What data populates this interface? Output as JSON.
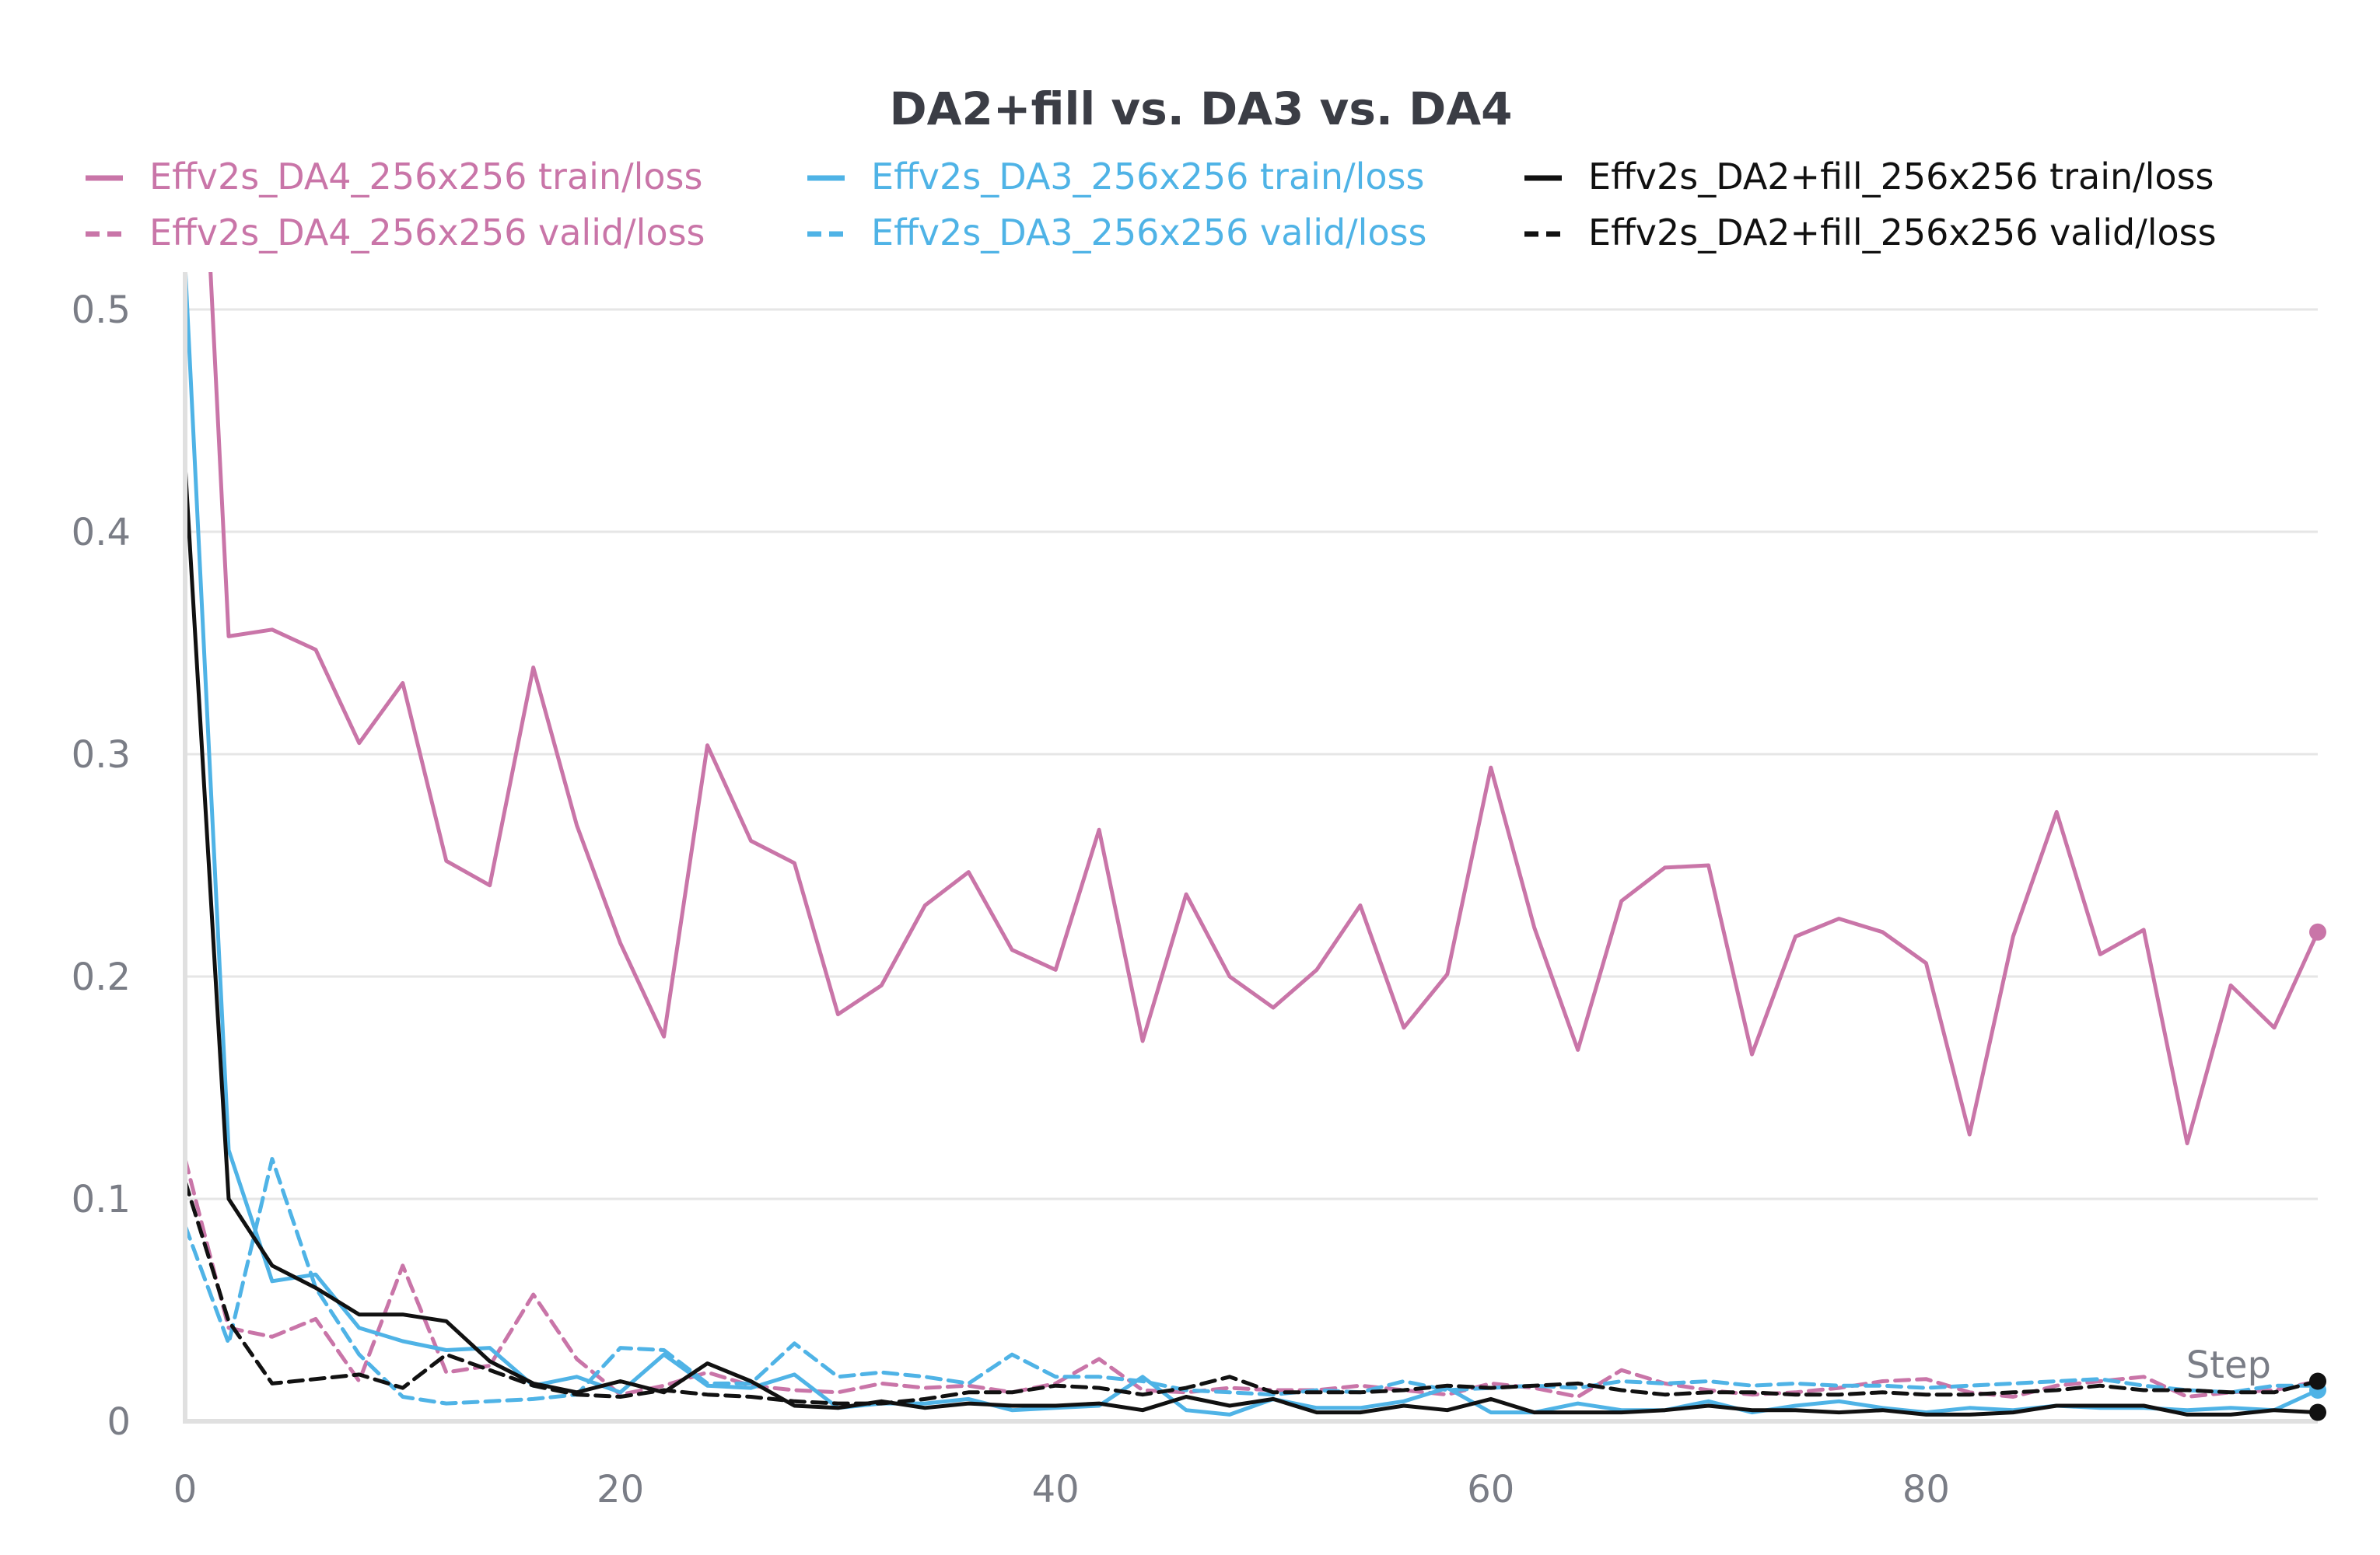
{
  "chart_data": {
    "type": "line",
    "title": "DA2+fill vs. DA3 vs. DA4",
    "xlabel": "Step",
    "ylabel": "",
    "xlim": [
      0,
      98
    ],
    "ylim": [
      0,
      0.5
    ],
    "xticks": [
      0,
      20,
      40,
      60,
      80
    ],
    "yticks": [
      0,
      0.1,
      0.2,
      0.3,
      0.4,
      0.5
    ],
    "ytick_labels": [
      "0",
      "0.1",
      "0.2",
      "0.3",
      "0.4",
      "0.5"
    ],
    "xtick_labels": [
      "0",
      "20",
      "40",
      "60",
      "80"
    ],
    "grid": true,
    "legend_position": "top",
    "series": [
      {
        "name": "Effv2s_DA4_256x256 train/loss",
        "color": "#c975a8",
        "style": "solid",
        "x": [
          1,
          2,
          4,
          6,
          8,
          10,
          12,
          14,
          16,
          18,
          20,
          22,
          24,
          26,
          28,
          30,
          32,
          34,
          36,
          38,
          40,
          42,
          44,
          46,
          48,
          50,
          52,
          54,
          56,
          58,
          60,
          62,
          64,
          66,
          68,
          70,
          72,
          74,
          76,
          78,
          80,
          82,
          84,
          86,
          88,
          90,
          92,
          94,
          96,
          98
        ],
        "y": [
          0.55,
          0.353,
          0.356,
          0.347,
          0.305,
          0.332,
          0.252,
          0.241,
          0.339,
          0.268,
          0.215,
          0.173,
          0.304,
          0.261,
          0.251,
          0.183,
          0.196,
          0.232,
          0.247,
          0.212,
          0.203,
          0.266,
          0.171,
          0.237,
          0.2,
          0.186,
          0.203,
          0.232,
          0.177,
          0.201,
          0.294,
          0.222,
          0.167,
          0.234,
          0.249,
          0.25,
          0.165,
          0.218,
          0.226,
          0.22,
          0.206,
          0.129,
          0.218,
          0.274,
          0.21,
          0.221,
          0.125,
          0.196,
          0.177,
          0.22
        ]
      },
      {
        "name": "Effv2s_DA4_256x256 valid/loss",
        "color": "#c975a8",
        "style": "dashed",
        "x": [
          0,
          2,
          4,
          6,
          8,
          10,
          12,
          14,
          16,
          18,
          20,
          22,
          24,
          26,
          28,
          30,
          32,
          34,
          36,
          38,
          40,
          42,
          44,
          46,
          48,
          50,
          52,
          54,
          56,
          58,
          60,
          62,
          64,
          66,
          68,
          70,
          72,
          74,
          76,
          78,
          80,
          82,
          84,
          86,
          88,
          90,
          92,
          94,
          96,
          98
        ],
        "y": [
          0.118,
          0.042,
          0.038,
          0.046,
          0.018,
          0.07,
          0.022,
          0.025,
          0.057,
          0.028,
          0.012,
          0.016,
          0.022,
          0.016,
          0.014,
          0.013,
          0.017,
          0.015,
          0.016,
          0.013,
          0.017,
          0.028,
          0.014,
          0.013,
          0.015,
          0.014,
          0.014,
          0.016,
          0.014,
          0.012,
          0.017,
          0.015,
          0.011,
          0.023,
          0.017,
          0.014,
          0.012,
          0.013,
          0.015,
          0.018,
          0.019,
          0.013,
          0.011,
          0.016,
          0.018,
          0.02,
          0.011,
          0.013,
          0.014,
          0.018
        ]
      },
      {
        "name": "Effv2s_DA3_256x256 train/loss",
        "color": "#4fb3e6",
        "style": "solid",
        "x": [
          0,
          2,
          4,
          6,
          8,
          10,
          12,
          14,
          16,
          18,
          20,
          22,
          24,
          26,
          28,
          30,
          32,
          34,
          36,
          38,
          40,
          42,
          44,
          46,
          48,
          50,
          52,
          54,
          56,
          58,
          60,
          62,
          64,
          66,
          68,
          70,
          72,
          74,
          76,
          78,
          80,
          82,
          84,
          86,
          88,
          90,
          92,
          94,
          96,
          98
        ],
        "y": [
          0.52,
          0.122,
          0.063,
          0.066,
          0.042,
          0.036,
          0.032,
          0.033,
          0.016,
          0.02,
          0.013,
          0.03,
          0.016,
          0.015,
          0.021,
          0.006,
          0.008,
          0.008,
          0.01,
          0.005,
          0.006,
          0.007,
          0.02,
          0.005,
          0.003,
          0.01,
          0.006,
          0.006,
          0.009,
          0.015,
          0.004,
          0.004,
          0.008,
          0.005,
          0.005,
          0.009,
          0.004,
          0.007,
          0.009,
          0.006,
          0.004,
          0.006,
          0.005,
          0.007,
          0.006,
          0.006,
          0.005,
          0.006,
          0.005,
          0.014
        ]
      },
      {
        "name": "Effv2s_DA3_256x256 valid/loss",
        "color": "#4fb3e6",
        "style": "dashed",
        "x": [
          0,
          2,
          4,
          6,
          8,
          10,
          12,
          14,
          16,
          18,
          20,
          22,
          24,
          26,
          28,
          30,
          32,
          34,
          36,
          38,
          40,
          42,
          44,
          46,
          48,
          50,
          52,
          54,
          56,
          58,
          60,
          62,
          64,
          66,
          68,
          70,
          72,
          74,
          76,
          78,
          80,
          82,
          84,
          86,
          88,
          90,
          92,
          94,
          96,
          98
        ],
        "y": [
          0.088,
          0.035,
          0.118,
          0.06,
          0.03,
          0.011,
          0.008,
          0.009,
          0.01,
          0.012,
          0.033,
          0.032,
          0.017,
          0.017,
          0.035,
          0.02,
          0.022,
          0.02,
          0.017,
          0.03,
          0.02,
          0.02,
          0.018,
          0.014,
          0.013,
          0.012,
          0.014,
          0.013,
          0.018,
          0.014,
          0.015,
          0.016,
          0.015,
          0.018,
          0.017,
          0.018,
          0.016,
          0.017,
          0.016,
          0.016,
          0.015,
          0.016,
          0.017,
          0.018,
          0.019,
          0.016,
          0.014,
          0.013,
          0.016,
          0.016
        ]
      },
      {
        "name": "Effv2s_DA2+fill_256x256 train/loss",
        "color": "#111111",
        "style": "solid",
        "x": [
          0,
          2,
          4,
          6,
          8,
          10,
          12,
          14,
          16,
          18,
          20,
          22,
          24,
          26,
          28,
          30,
          32,
          34,
          36,
          38,
          40,
          42,
          44,
          46,
          48,
          50,
          52,
          54,
          56,
          58,
          60,
          62,
          64,
          66,
          68,
          70,
          72,
          74,
          76,
          78,
          80,
          82,
          84,
          86,
          88,
          90,
          92,
          94,
          96,
          98
        ],
        "y": [
          0.43,
          0.1,
          0.07,
          0.06,
          0.048,
          0.048,
          0.045,
          0.027,
          0.017,
          0.013,
          0.018,
          0.013,
          0.026,
          0.018,
          0.007,
          0.006,
          0.009,
          0.006,
          0.008,
          0.007,
          0.007,
          0.008,
          0.005,
          0.011,
          0.007,
          0.01,
          0.004,
          0.004,
          0.007,
          0.005,
          0.01,
          0.004,
          0.004,
          0.004,
          0.005,
          0.007,
          0.005,
          0.005,
          0.004,
          0.005,
          0.003,
          0.003,
          0.004,
          0.007,
          0.007,
          0.007,
          0.003,
          0.003,
          0.005,
          0.004
        ]
      },
      {
        "name": "Effv2s_DA2+fill_256x256 valid/loss",
        "color": "#111111",
        "style": "dashed",
        "x": [
          0,
          2,
          4,
          6,
          8,
          10,
          12,
          14,
          16,
          18,
          20,
          22,
          24,
          26,
          28,
          30,
          32,
          34,
          36,
          38,
          40,
          42,
          44,
          46,
          48,
          50,
          52,
          54,
          56,
          58,
          60,
          62,
          64,
          66,
          68,
          70,
          72,
          74,
          76,
          78,
          80,
          82,
          84,
          86,
          88,
          90,
          92,
          94,
          96,
          98
        ],
        "y": [
          0.108,
          0.045,
          0.017,
          0.019,
          0.021,
          0.015,
          0.03,
          0.023,
          0.016,
          0.012,
          0.011,
          0.014,
          0.012,
          0.011,
          0.009,
          0.008,
          0.008,
          0.01,
          0.013,
          0.013,
          0.016,
          0.015,
          0.012,
          0.015,
          0.02,
          0.013,
          0.013,
          0.013,
          0.014,
          0.016,
          0.015,
          0.016,
          0.017,
          0.014,
          0.012,
          0.013,
          0.013,
          0.012,
          0.012,
          0.013,
          0.012,
          0.012,
          0.013,
          0.014,
          0.016,
          0.014,
          0.014,
          0.013,
          0.013,
          0.018
        ]
      }
    ]
  }
}
